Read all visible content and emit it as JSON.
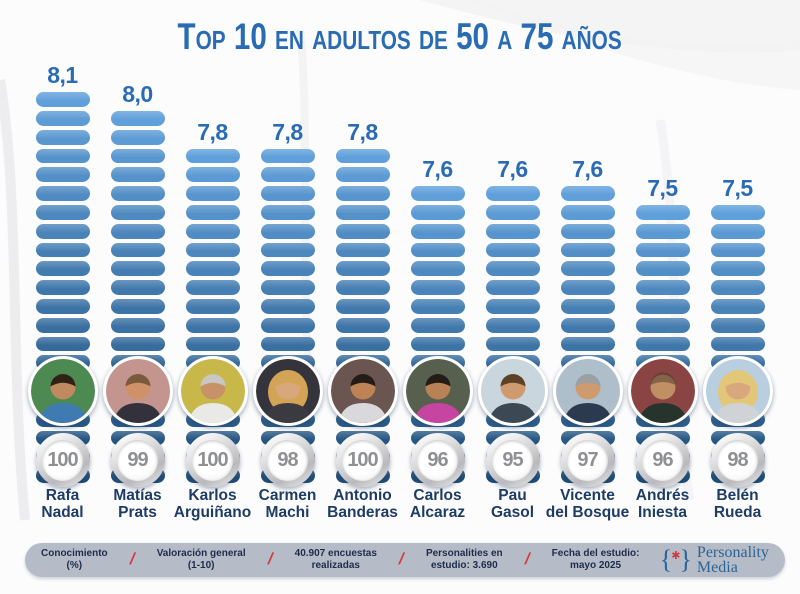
{
  "title": "Top 10 en adultos de 50 a 75 años",
  "chart_data": {
    "type": "bar",
    "title": "Top 10 en adultos de 50 a 75 años",
    "categories": [
      "Rafa Nadal",
      "Matías Prats",
      "Karlos Arguiñano",
      "Carmen Machi",
      "Antonio Banderas",
      "Carlos Alcaraz",
      "Pau Gasol",
      "Vicente del Bosque",
      "Andrés Iniesta",
      "Belén Rueda"
    ],
    "series": [
      {
        "name": "Valoración general (1-10)",
        "values": [
          8.1,
          8.0,
          7.8,
          7.8,
          7.8,
          7.6,
          7.6,
          7.6,
          7.5,
          7.5
        ]
      },
      {
        "name": "Conocimiento (%)",
        "values": [
          100,
          99,
          100,
          98,
          100,
          96,
          95,
          97,
          96,
          98
        ]
      }
    ],
    "ylim": [
      6.0,
      8.5
    ],
    "legend_position": "bottom",
    "grid": false
  },
  "people": [
    {
      "name_line1": "Rafa",
      "name_line2": "Nadal",
      "score_label": "8,1",
      "score": 8.1,
      "awareness": "100",
      "avatar": {
        "bg": "#4d8a52",
        "skin": "#c08a5f",
        "hair": "#2f2317",
        "shirt": "#3f7ab0",
        "long_hair": false,
        "bald": false
      }
    },
    {
      "name_line1": "Matías",
      "name_line2": "Prats",
      "score_label": "8,0",
      "score": 8.0,
      "awareness": "99",
      "avatar": {
        "bg": "#c4958f",
        "skin": "#cf9268",
        "hair": "#7a5a3c",
        "shirt": "#33323c",
        "long_hair": false,
        "bald": false
      }
    },
    {
      "name_line1": "Karlos",
      "name_line2": "Arguiñano",
      "score_label": "7,8",
      "score": 7.8,
      "awareness": "100",
      "avatar": {
        "bg": "#c8b84a",
        "skin": "#c89268",
        "hair": "#c9c7c2",
        "shirt": "#e9e9e7",
        "long_hair": false,
        "bald": false
      }
    },
    {
      "name_line1": "Carmen",
      "name_line2": "Machi",
      "score_label": "7,8",
      "score": 7.8,
      "awareness": "98",
      "avatar": {
        "bg": "#35343c",
        "skin": "#d8a87c",
        "hair": "#d3a455",
        "shirt": "#3a3a40",
        "long_hair": true,
        "bald": false
      }
    },
    {
      "name_line1": "Antonio",
      "name_line2": "Banderas",
      "score_label": "7,8",
      "score": 7.8,
      "awareness": "100",
      "avatar": {
        "bg": "#6b5550",
        "skin": "#bd8357",
        "hair": "#241c16",
        "shirt": "#d9d9dc",
        "long_hair": false,
        "bald": false
      }
    },
    {
      "name_line1": "Carlos",
      "name_line2": "Alcaraz",
      "score_label": "7,6",
      "score": 7.6,
      "awareness": "96",
      "avatar": {
        "bg": "#57604f",
        "skin": "#b98256",
        "hair": "#241c16",
        "shirt": "#c645a0",
        "long_hair": false,
        "bald": false
      }
    },
    {
      "name_line1": "Pau",
      "name_line2": "Gasol",
      "score_label": "7,6",
      "score": 7.6,
      "awareness": "95",
      "avatar": {
        "bg": "#c9d6de",
        "skin": "#cf9a6e",
        "hair": "#5d4228",
        "shirt": "#3c4854",
        "long_hair": false,
        "bald": false
      }
    },
    {
      "name_line1": "Vicente",
      "name_line2": "del Bosque",
      "score_label": "7,6",
      "score": 7.6,
      "awareness": "97",
      "avatar": {
        "bg": "#aebfcb",
        "skin": "#cf9a6e",
        "hair": "#9aa0a4",
        "shirt": "#2b3a4e",
        "long_hair": false,
        "bald": false
      }
    },
    {
      "name_line1": "Andrés",
      "name_line2": "Iniesta",
      "score_label": "7,5",
      "score": 7.5,
      "awareness": "96",
      "avatar": {
        "bg": "#8a4444",
        "skin": "#c08f64",
        "hair": "#46392c",
        "shirt": "#27342c",
        "long_hair": false,
        "bald": true
      }
    },
    {
      "name_line1": "Belén",
      "name_line2": "Rueda",
      "score_label": "7,5",
      "score": 7.5,
      "awareness": "98",
      "avatar": {
        "bg": "#b9cede",
        "skin": "#d8a87c",
        "hair": "#e3c779",
        "shirt": "#cfd3d6",
        "long_hair": true,
        "bald": false
      }
    }
  ],
  "footer": {
    "separator": "/",
    "items": [
      {
        "line1": "Conocimiento",
        "line2": "(%)"
      },
      {
        "line1": "Valoración general",
        "line2": "(1-10)"
      },
      {
        "line1": "40.907 encuestas",
        "line2": "realizadas"
      },
      {
        "line1": "Personalities en",
        "line2": "estudio: 3.690"
      },
      {
        "line1": "Fecha del estudio:",
        "line2": "mayo 2025"
      }
    ],
    "logo": {
      "brace_open": "{",
      "asterisk": "✱",
      "brace_close": "}",
      "line1": "Personality",
      "line2": "Media"
    }
  },
  "colors": {
    "accent_blue": "#2a6cb4",
    "pill_top": "#5f9fda",
    "pill_bottom": "#1f4e79",
    "name_navy": "#1e3c64",
    "badge_number": "#8f9093",
    "footer_bg": "#b6bcc7",
    "footer_text": "#1d2c4c",
    "separator_red": "#d23b3f",
    "logo_blue": "#2a6496"
  }
}
